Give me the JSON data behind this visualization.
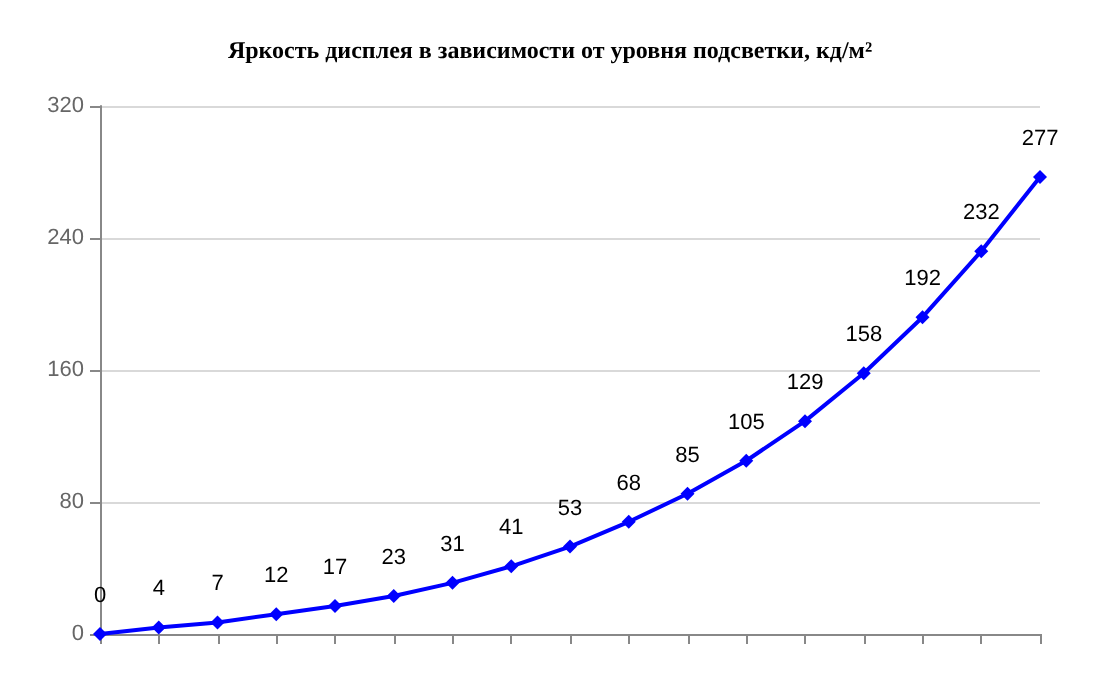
{
  "chart_data": {
    "type": "line",
    "title": "Яркость дисплея в зависимости от уровня подсветки, кд/м²",
    "categories": [
      null,
      null,
      null,
      null,
      null,
      null,
      null,
      null,
      null,
      null,
      null,
      null,
      null,
      null,
      null,
      null,
      null
    ],
    "series": [
      {
        "color": "#0000ff",
        "values": [
          0,
          4,
          7,
          12,
          17,
          23,
          31,
          41,
          53,
          68,
          85,
          105,
          129,
          158,
          192,
          232,
          277
        ]
      }
    ],
    "ylim": [
      0,
      320
    ],
    "yticks": [
      0,
      80,
      160,
      240,
      320
    ],
    "grid": "y",
    "marker": "diamond",
    "data_labels": true,
    "tick_labels": "y"
  }
}
